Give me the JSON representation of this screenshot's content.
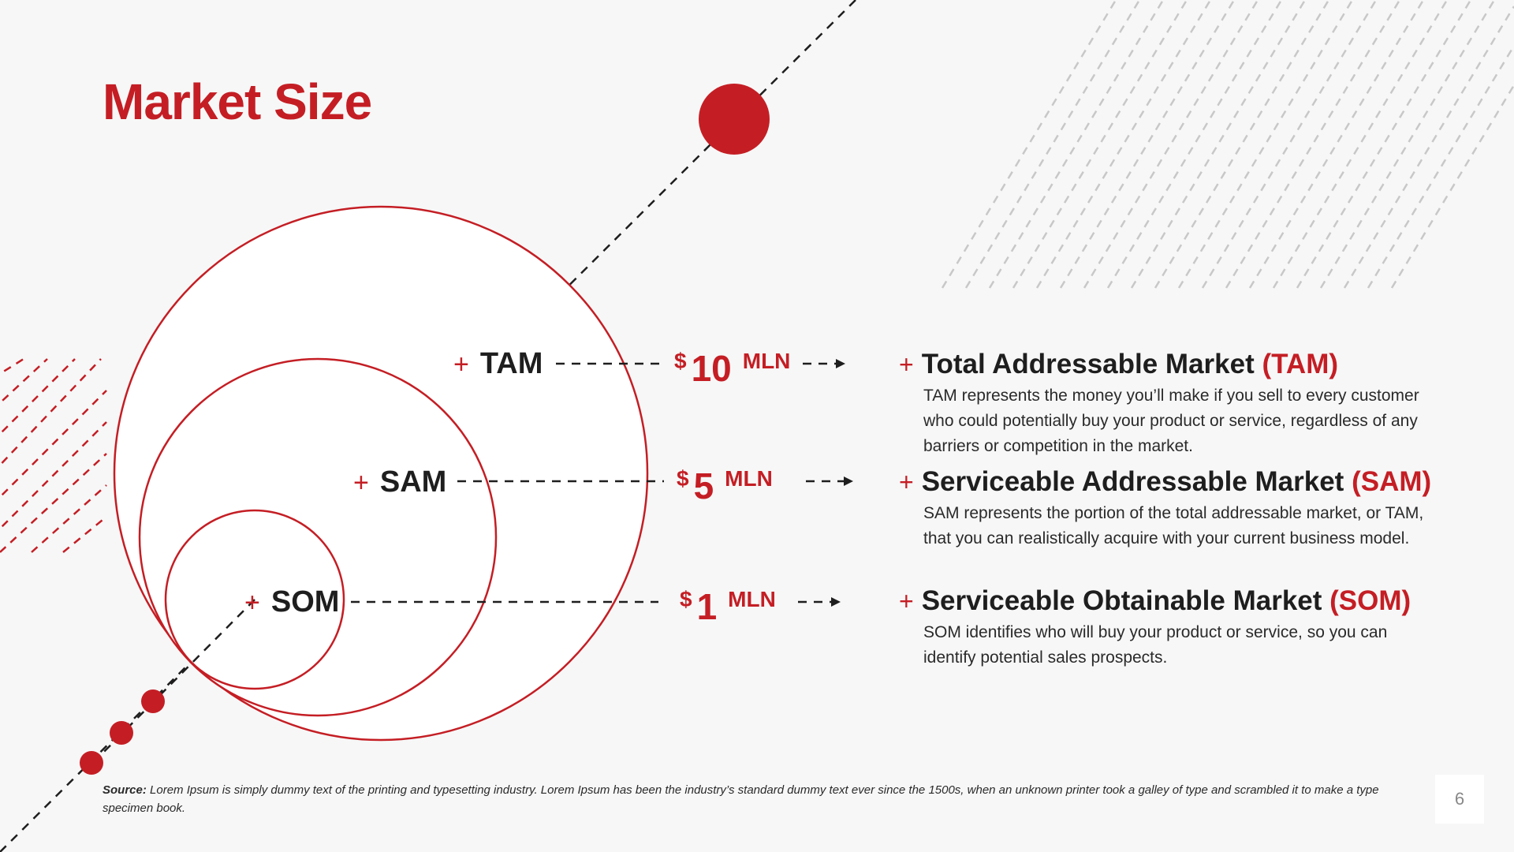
{
  "title": "Market Size",
  "colors": {
    "accent": "#c41e24",
    "text": "#1e1e1e",
    "background": "#f7f7f7"
  },
  "circles": [
    {
      "label": "TAM",
      "value": {
        "currency": "$",
        "number": "10",
        "unit": "MLN"
      }
    },
    {
      "label": "SAM",
      "value": {
        "currency": "$",
        "number": "5",
        "unit": "MLN"
      }
    },
    {
      "label": "SOM",
      "value": {
        "currency": "$",
        "number": "1",
        "unit": "MLN"
      }
    }
  ],
  "items": [
    {
      "title": "Total Addressable Market",
      "acronym": "(TAM)",
      "description": "TAM represents the money you’ll make if you sell to every customer who could potentially buy your product or service, regardless of any barriers or competition in the market."
    },
    {
      "title": "Serviceable Addressable Market",
      "acronym": "(SAM)",
      "description": "SAM represents the portion of the total addressable market, or TAM, that you can realistically acquire with your current business model."
    },
    {
      "title": "Serviceable Obtainable Market",
      "acronym": "(SOM)",
      "description": "SOM identifies who will buy your product or service, so you can identify potential sales prospects."
    }
  ],
  "source": {
    "label": "Source:",
    "text": "Lorem Ipsum is simply dummy text of the printing and typesetting industry. Lorem Ipsum has been the industry’s standard dummy text ever since the 1500s, when an unknown printer took a galley of type and scrambled it to make a type specimen book."
  },
  "page_number": "6"
}
